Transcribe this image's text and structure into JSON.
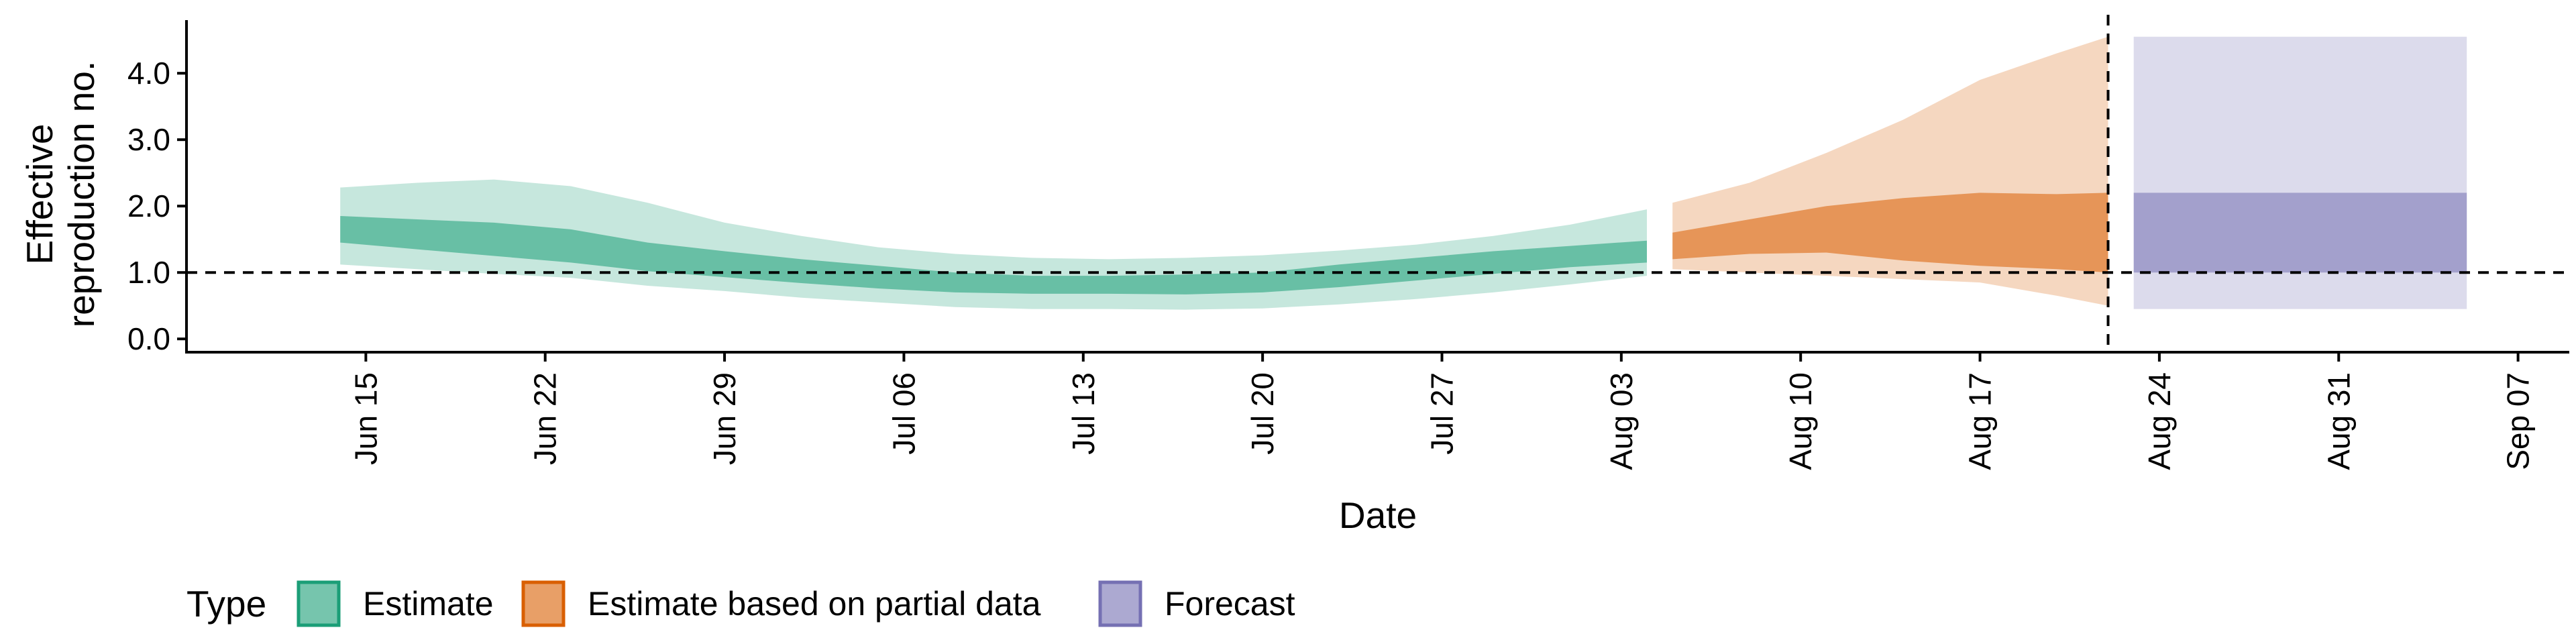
{
  "chart_data": {
    "type": "area",
    "title": "",
    "xlabel": "Date",
    "ylabel": "Effective\nreproduction no.",
    "xlim": [
      "2020-06-08",
      "2020-09-09"
    ],
    "ylim": [
      -0.2,
      4.8
    ],
    "yticks": [
      "0.0",
      "1.0",
      "2.0",
      "3.0",
      "4.0"
    ],
    "xticks": [
      {
        "date": "2020-06-15",
        "label": "Jun 15"
      },
      {
        "date": "2020-06-22",
        "label": "Jun 22"
      },
      {
        "date": "2020-06-29",
        "label": "Jun 29"
      },
      {
        "date": "2020-07-06",
        "label": "Jul 06"
      },
      {
        "date": "2020-07-13",
        "label": "Jul 13"
      },
      {
        "date": "2020-07-20",
        "label": "Jul 20"
      },
      {
        "date": "2020-07-27",
        "label": "Jul 27"
      },
      {
        "date": "2020-08-03",
        "label": "Aug 03"
      },
      {
        "date": "2020-08-10",
        "label": "Aug 10"
      },
      {
        "date": "2020-08-17",
        "label": "Aug 17"
      },
      {
        "date": "2020-08-24",
        "label": "Aug 24"
      },
      {
        "date": "2020-08-31",
        "label": "Aug 31"
      },
      {
        "date": "2020-09-07",
        "label": "Sep 07"
      }
    ],
    "reference_line_y": 1.0,
    "vertical_line_date": "2020-08-22",
    "grid": false,
    "legend": {
      "title": "Type",
      "position": "bottom",
      "items": [
        {
          "label": "Estimate",
          "color": "#1b9e77"
        },
        {
          "label": "Estimate based on partial data",
          "color": "#d95f02"
        },
        {
          "label": "Forecast",
          "color": "#7570b3"
        }
      ]
    },
    "series": [
      {
        "name": "Estimate",
        "color": "#1b9e77",
        "bands": [
          {
            "x": [
              "2020-06-14",
              "2020-06-17",
              "2020-06-20",
              "2020-06-23",
              "2020-06-26",
              "2020-06-29",
              "2020-07-02",
              "2020-07-05",
              "2020-07-08",
              "2020-07-11",
              "2020-07-14",
              "2020-07-17",
              "2020-07-20",
              "2020-07-23",
              "2020-07-26",
              "2020-07-29",
              "2020-08-01",
              "2020-08-04"
            ],
            "lower": [
              1.12,
              1.05,
              0.98,
              0.92,
              0.8,
              0.72,
              0.62,
              0.55,
              0.48,
              0.45,
              0.45,
              0.44,
              0.46,
              0.52,
              0.6,
              0.7,
              0.82,
              0.95
            ],
            "upper": [
              2.28,
              2.35,
              2.4,
              2.3,
              2.05,
              1.75,
              1.55,
              1.38,
              1.28,
              1.22,
              1.2,
              1.22,
              1.26,
              1.33,
              1.42,
              1.55,
              1.72,
              1.95
            ]
          },
          {
            "x": [
              "2020-06-14",
              "2020-06-17",
              "2020-06-20",
              "2020-06-23",
              "2020-06-26",
              "2020-06-29",
              "2020-07-02",
              "2020-07-05",
              "2020-07-08",
              "2020-07-11",
              "2020-07-14",
              "2020-07-17",
              "2020-07-20",
              "2020-07-23",
              "2020-07-26",
              "2020-07-29",
              "2020-08-01",
              "2020-08-04"
            ],
            "lower": [
              1.45,
              1.35,
              1.25,
              1.15,
              1.02,
              0.93,
              0.84,
              0.76,
              0.7,
              0.68,
              0.68,
              0.67,
              0.7,
              0.78,
              0.88,
              0.98,
              1.08,
              1.15
            ],
            "upper": [
              1.85,
              1.8,
              1.75,
              1.65,
              1.45,
              1.32,
              1.2,
              1.1,
              1.0,
              0.95,
              0.95,
              0.97,
              1.0,
              1.12,
              1.22,
              1.32,
              1.4,
              1.48
            ]
          }
        ]
      },
      {
        "name": "Estimate based on partial data",
        "color": "#d95f02",
        "bands": [
          {
            "x": [
              "2020-08-05",
              "2020-08-08",
              "2020-08-11",
              "2020-08-14",
              "2020-08-17",
              "2020-08-20",
              "2020-08-22"
            ],
            "lower": [
              1.05,
              1.0,
              0.95,
              0.9,
              0.85,
              0.65,
              0.5
            ],
            "upper": [
              2.05,
              2.35,
              2.8,
              3.3,
              3.9,
              4.3,
              4.55
            ]
          },
          {
            "x": [
              "2020-08-05",
              "2020-08-08",
              "2020-08-11",
              "2020-08-14",
              "2020-08-17",
              "2020-08-20",
              "2020-08-22"
            ],
            "lower": [
              1.2,
              1.28,
              1.3,
              1.18,
              1.1,
              1.05,
              1.0
            ],
            "upper": [
              1.6,
              1.8,
              2.0,
              2.12,
              2.2,
              2.18,
              2.2
            ]
          }
        ]
      },
      {
        "name": "Forecast",
        "color": "#7570b3",
        "bands": [
          {
            "x": [
              "2020-08-23",
              "2020-09-05"
            ],
            "lower": [
              0.45,
              0.45
            ],
            "upper": [
              4.55,
              4.55
            ]
          },
          {
            "x": [
              "2020-08-23",
              "2020-09-05"
            ],
            "lower": [
              1.0,
              1.0
            ],
            "upper": [
              2.2,
              2.2
            ]
          }
        ]
      }
    ]
  }
}
